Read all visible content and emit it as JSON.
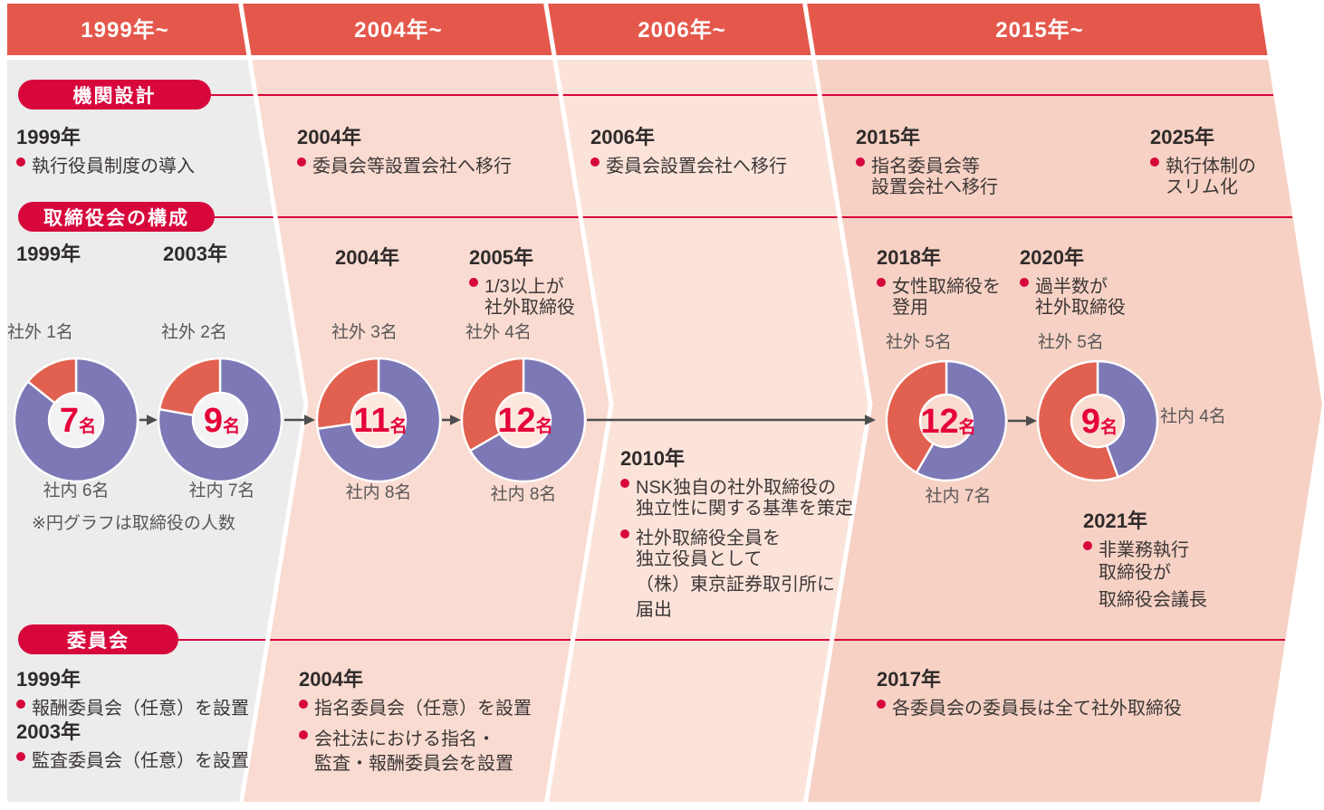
{
  "periods": [
    "1999年~",
    "2004年~",
    "2006年~",
    "2015年~"
  ],
  "sections": {
    "org": {
      "label": "機関設計"
    },
    "board_comp": {
      "label": "取締役会の構成"
    },
    "committee_sec": {
      "label": "委員会"
    }
  },
  "org": {
    "e1999": {
      "year": "1999年",
      "b1": "執行役員制度の導入"
    },
    "e2004": {
      "year": "2004年",
      "b1": "委員会等設置会社へ移行"
    },
    "e2006": {
      "year": "2006年",
      "b1": "委員会設置会社へ移行"
    },
    "e2015": {
      "year": "2015年",
      "b1": "指名委員会等",
      "b1b": "設置会社へ移行"
    },
    "e2025": {
      "year": "2025年",
      "b1": "執行体制の",
      "b1b": "スリム化"
    }
  },
  "board": {
    "y1999": "1999年",
    "y2003": "2003年",
    "y2004": "2004年",
    "e2005": {
      "year": "2005年",
      "b1": "1/3以上が",
      "b1b": "社外取締役"
    },
    "e2018": {
      "year": "2018年",
      "b1": "女性取締役を",
      "b1b": "登用"
    },
    "e2020": {
      "year": "2020年",
      "b1": "過半数が",
      "b1b": "社外取締役"
    },
    "e2010": {
      "year": "2010年",
      "b1": "NSK独自の社外取締役の",
      "b1b": "独立性に関する基準を策定",
      "b2": "社外取締役全員を",
      "b2b": "独立役員として",
      "b2c": "（株）東京証券取引所に",
      "b2d": "届出"
    },
    "e2021": {
      "year": "2021年",
      "b1": "非業務執行",
      "b1b": "取締役が",
      "b1c": "取締役会議長"
    }
  },
  "committee": {
    "e1999": {
      "year": "1999年",
      "b1": "報酬委員会（任意）を設置"
    },
    "e2003": {
      "year": "2003年",
      "b1": "監査委員会（任意）を設置"
    },
    "e2004": {
      "year": "2004年",
      "b1": "指名委員会（任意）を設置",
      "b2": "会社法における指名・",
      "b2b": "監査・報酬委員会を設置"
    },
    "e2017": {
      "year": "2017年",
      "b1": "各委員会の委員長は全て社外取締役"
    }
  },
  "chart_data": {
    "type": "pie",
    "style": "donut",
    "note": "※円グラフは取締役の人数",
    "legend": {
      "outside": "社外",
      "inside": "社内"
    },
    "unit": "名",
    "donuts": [
      {
        "year": "1999年",
        "total": 7,
        "outside": 1,
        "inside": 6,
        "center": "7",
        "outside_label": "社外 1名",
        "inside_label": "社内 6名"
      },
      {
        "year": "2003年",
        "total": 9,
        "outside": 2,
        "inside": 7,
        "center": "9",
        "outside_label": "社外 2名",
        "inside_label": "社内 7名"
      },
      {
        "year": "2004年",
        "total": 11,
        "outside": 3,
        "inside": 8,
        "center": "11",
        "outside_label": "社外 3名",
        "inside_label": "社内 8名"
      },
      {
        "year": "2005年",
        "total": 12,
        "outside": 4,
        "inside": 8,
        "center": "12",
        "outside_label": "社外 4名",
        "inside_label": "社内 8名"
      },
      {
        "year": "2018年",
        "total": 12,
        "outside": 5,
        "inside": 7,
        "center": "12",
        "outside_label": "社外 5名",
        "inside_label": "社内 7名"
      },
      {
        "year": "2020年",
        "total": 9,
        "outside": 5,
        "inside": 4,
        "center": "9",
        "outside_label": "社外 5名",
        "inside_label": "社内 4名"
      }
    ]
  },
  "colors": {
    "band": "#e4584b",
    "accent_crimson": "#d7073c",
    "column_1": "#ececed",
    "column_2": "#f9dbd1",
    "column_3": "#fbe3da",
    "column_4": "#f6d1c4",
    "donut_outside": "#e2604f",
    "donut_inside": "#7d78b6",
    "donut_center_text": "#e60039",
    "arrow": "#4d4d4d",
    "label_gray": "#595757",
    "text": "#3c3736"
  }
}
